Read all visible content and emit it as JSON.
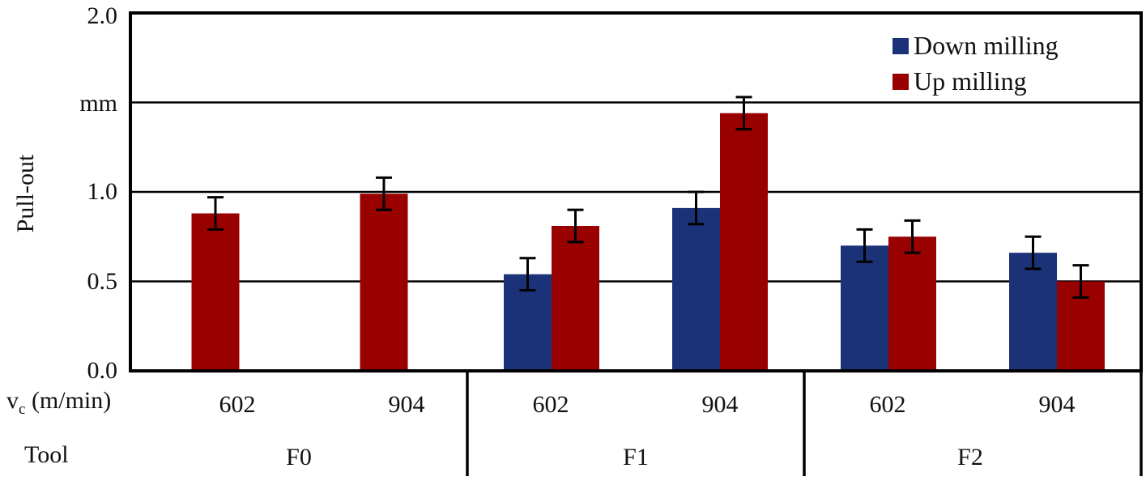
{
  "chart_data": {
    "type": "bar",
    "title": "",
    "ylabel": "Pull-out",
    "yunit_label": "mm",
    "ylim": [
      0.0,
      2.0
    ],
    "yticks": [
      "0.0",
      "0.5",
      "1.0",
      "mm",
      "2.0"
    ],
    "ytick_values": [
      0.0,
      0.5,
      1.0,
      1.5,
      2.0
    ],
    "grid": true,
    "legend_position": "top-right",
    "x_level1_label": "v_c (m/min)",
    "x_level2_label": "Tool",
    "groups": [
      "F0",
      "F1",
      "F2"
    ],
    "categories": [
      "F0 602",
      "F0 904",
      "F1 602",
      "F1 904",
      "F2 602",
      "F2 904"
    ],
    "speeds": [
      "602",
      "904",
      "602",
      "904",
      "602",
      "904"
    ],
    "series": [
      {
        "name": "Down milling",
        "color": "#1c3278",
        "values": [
          null,
          null,
          0.54,
          0.91,
          0.7,
          0.66
        ],
        "errors": [
          null,
          null,
          0.09,
          0.09,
          0.09,
          0.09
        ]
      },
      {
        "name": "Up milling",
        "color": "#990000",
        "values": [
          0.88,
          0.99,
          0.81,
          1.44,
          0.75,
          0.5
        ],
        "errors": [
          0.09,
          0.09,
          0.09,
          0.09,
          0.09,
          0.09
        ]
      }
    ]
  },
  "axis": {
    "y_ticks": [
      "2.0",
      "mm",
      "1.0",
      "0.5",
      "0.0"
    ],
    "y_label": "Pull-out",
    "vc_label_main": "v",
    "vc_label_sub": "c",
    "vc_label_unit": " (m/min)",
    "tool_label": "Tool",
    "speeds": [
      "602",
      "904",
      "602",
      "904",
      "602",
      "904"
    ],
    "tools": [
      "F0",
      "F1",
      "F2"
    ]
  },
  "legend": {
    "down": "Down milling",
    "up": "Up milling",
    "down_color": "#1c3278",
    "up_color": "#990000"
  }
}
